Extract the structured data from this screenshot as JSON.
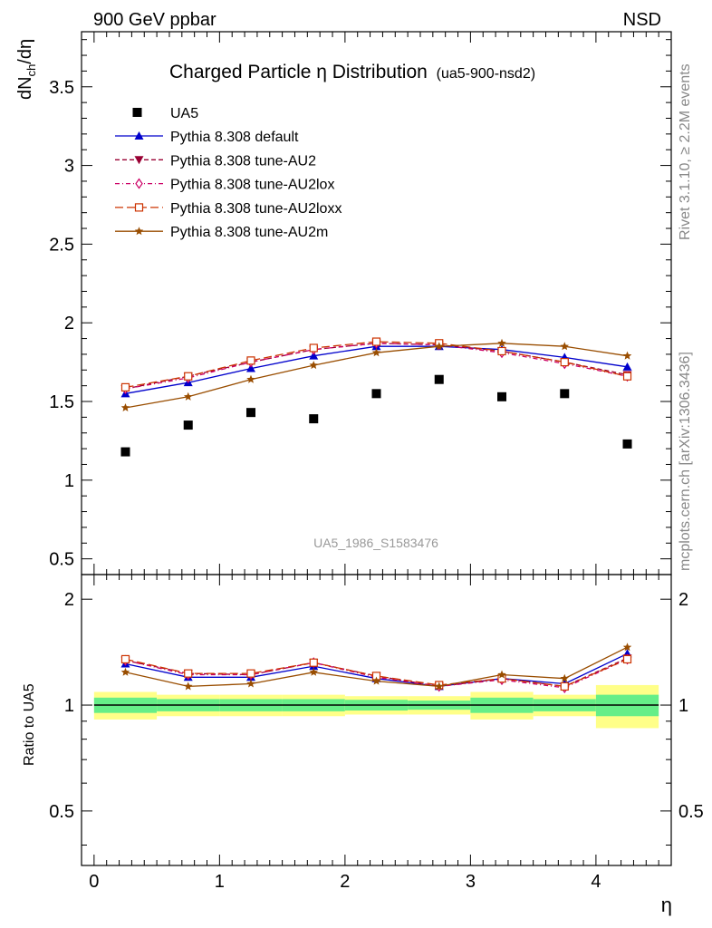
{
  "header": {
    "left": "900 GeV ppbar",
    "right": "NSD",
    "rivet_label": "Rivet 3.1.10, ≥ 2.2M events",
    "mcplots_label": "mcplots.cern.ch [arXiv:1306.3436]",
    "analysis_id": "UA5_1986_S1583476"
  },
  "chart_data": [
    {
      "type": "scatter",
      "title": "Charged Particle η Distribution",
      "subtitle": "(ua5-900-nsd2)",
      "ylabel": "dN_ch/dη",
      "xlabel": "η",
      "xlim": [
        -0.1,
        4.6
      ],
      "ylim": [
        0.4,
        3.85
      ],
      "yticks": [
        0.5,
        1,
        1.5,
        2,
        2.5,
        3,
        3.5
      ],
      "ytick_labels": [
        "0.5",
        "1",
        "1.5",
        "2",
        "2.5",
        "3",
        "3.5"
      ],
      "legend_position": "top-left",
      "x": [
        0.25,
        0.75,
        1.25,
        1.75,
        2.25,
        2.75,
        3.25,
        3.75,
        4.25
      ],
      "data": {
        "name": "UA5",
        "y": [
          1.18,
          1.35,
          1.43,
          1.39,
          1.55,
          1.64,
          1.53,
          1.55,
          1.23
        ]
      },
      "series": [
        {
          "name": "Pythia 8.308 default",
          "color": "#0000cc",
          "marker": "triangle-up",
          "dash": "solid",
          "y": [
            1.55,
            1.62,
            1.71,
            1.79,
            1.85,
            1.85,
            1.83,
            1.78,
            1.72
          ]
        },
        {
          "name": "Pythia 8.308 tune-AU2",
          "color": "#990033",
          "marker": "triangle-down",
          "dash": "dashed",
          "y": [
            1.58,
            1.66,
            1.75,
            1.83,
            1.87,
            1.86,
            1.82,
            1.75,
            1.67
          ]
        },
        {
          "name": "Pythia 8.308 tune-AU2lox",
          "color": "#cc0066",
          "marker": "diamond-open",
          "dash": "dashdot",
          "y": [
            1.58,
            1.65,
            1.75,
            1.83,
            1.87,
            1.86,
            1.81,
            1.74,
            1.66
          ]
        },
        {
          "name": "Pythia 8.308 tune-AU2loxx",
          "color": "#cc3300",
          "marker": "square-open",
          "dash": "longdash",
          "y": [
            1.59,
            1.66,
            1.76,
            1.84,
            1.88,
            1.87,
            1.82,
            1.75,
            1.66
          ]
        },
        {
          "name": "Pythia 8.308 tune-AU2m",
          "color": "#994d00",
          "marker": "star",
          "dash": "solid",
          "y": [
            1.46,
            1.53,
            1.64,
            1.73,
            1.81,
            1.85,
            1.87,
            1.85,
            1.79
          ]
        }
      ]
    },
    {
      "type": "line",
      "ylabel": "Ratio to UA5",
      "xlabel": "η",
      "xlim": [
        -0.1,
        4.6
      ],
      "ylim": [
        0.35,
        2.35
      ],
      "ylog": true,
      "yticks": [
        0.5,
        1,
        2
      ],
      "ytick_labels": [
        "0.5",
        "1",
        "2"
      ],
      "xticks": [
        0,
        1,
        2,
        3,
        4
      ],
      "xtick_labels": [
        "0",
        "1",
        "2",
        "3",
        "4"
      ],
      "bins": [
        [
          0,
          0.5
        ],
        [
          0.5,
          1
        ],
        [
          1,
          1.5
        ],
        [
          1.5,
          2
        ],
        [
          2,
          2.5
        ],
        [
          2.5,
          3
        ],
        [
          3,
          3.5
        ],
        [
          3.5,
          4
        ],
        [
          4,
          4.5
        ]
      ],
      "band_inner": [
        0.05,
        0.04,
        0.04,
        0.04,
        0.035,
        0.03,
        0.05,
        0.04,
        0.07
      ],
      "band_outer": [
        0.09,
        0.07,
        0.07,
        0.07,
        0.06,
        0.06,
        0.09,
        0.07,
        0.14
      ],
      "band_colors": {
        "inner": "#66ee88",
        "outer": "#ffff88"
      },
      "x": [
        0.25,
        0.75,
        1.25,
        1.75,
        2.25,
        2.75,
        3.25,
        3.75,
        4.25
      ],
      "series": [
        {
          "name": "Pythia 8.308 default",
          "color": "#0000cc",
          "marker": "triangle-up",
          "dash": "solid",
          "y": [
            1.31,
            1.2,
            1.2,
            1.29,
            1.19,
            1.13,
            1.19,
            1.15,
            1.4
          ]
        },
        {
          "name": "Pythia 8.308 tune-AU2",
          "color": "#990033",
          "marker": "triangle-down",
          "dash": "dashed",
          "y": [
            1.34,
            1.23,
            1.22,
            1.32,
            1.21,
            1.13,
            1.19,
            1.13,
            1.36
          ]
        },
        {
          "name": "Pythia 8.308 tune-AU2lox",
          "color": "#cc0066",
          "marker": "diamond-open",
          "dash": "dashdot",
          "y": [
            1.34,
            1.22,
            1.22,
            1.32,
            1.2,
            1.13,
            1.18,
            1.12,
            1.35
          ]
        },
        {
          "name": "Pythia 8.308 tune-AU2loxx",
          "color": "#cc3300",
          "marker": "square-open",
          "dash": "longdash",
          "y": [
            1.35,
            1.23,
            1.23,
            1.32,
            1.21,
            1.14,
            1.19,
            1.13,
            1.35
          ]
        },
        {
          "name": "Pythia 8.308 tune-AU2m",
          "color": "#994d00",
          "marker": "star",
          "dash": "solid",
          "y": [
            1.24,
            1.13,
            1.15,
            1.24,
            1.17,
            1.13,
            1.22,
            1.19,
            1.46
          ]
        }
      ]
    }
  ]
}
